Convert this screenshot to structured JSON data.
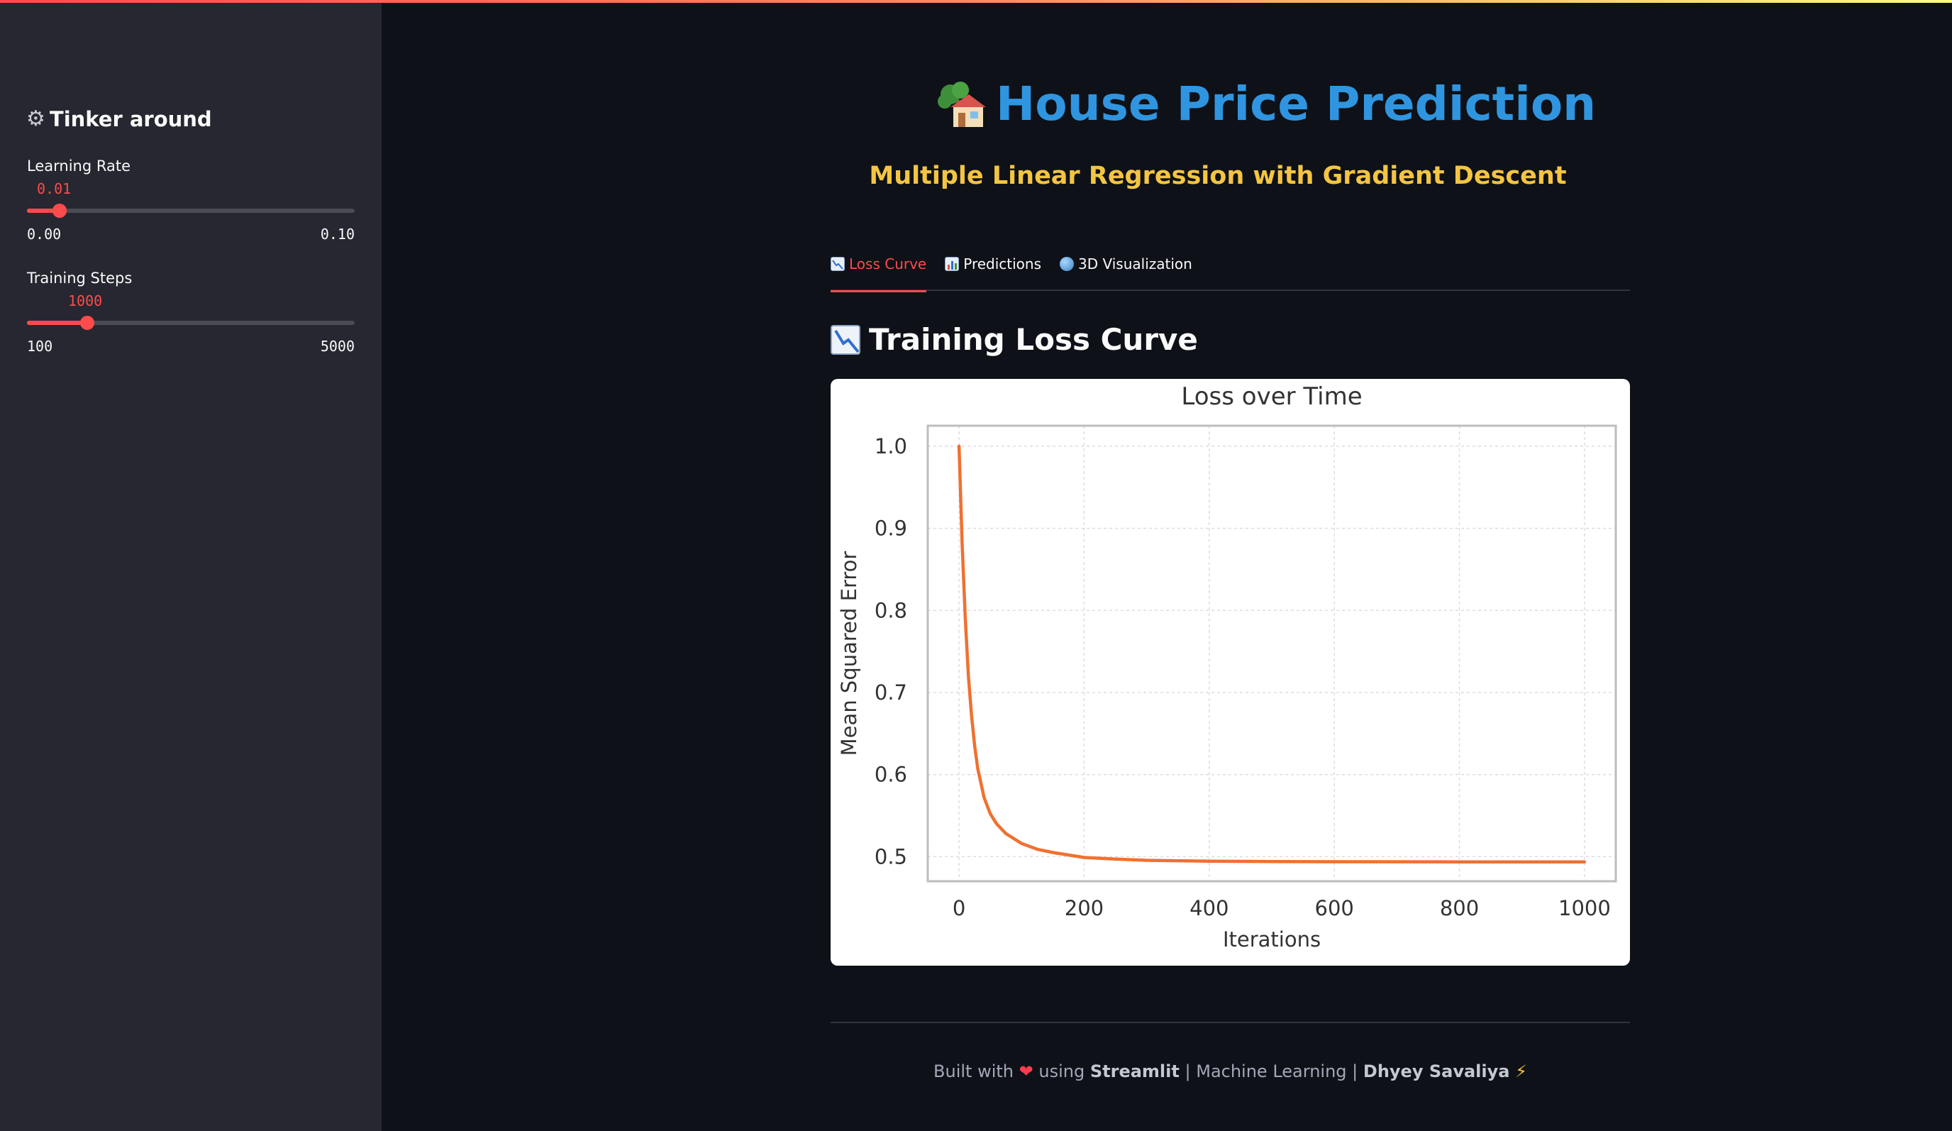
{
  "sidebar": {
    "header": "Tinker around",
    "learning_rate": {
      "label": "Learning Rate",
      "value": "0.01",
      "min": "0.00",
      "max": "0.10",
      "fraction": 0.1
    },
    "training_steps": {
      "label": "Training Steps",
      "value": "1000",
      "min": "100",
      "max": "5000",
      "fraction": 0.184
    }
  },
  "main": {
    "title": "House Price Prediction",
    "subtitle": "Multiple Linear Regression with Gradient Descent",
    "tabs": [
      {
        "label": "Loss Curve",
        "icon": "chart-decreasing-icon",
        "active": true
      },
      {
        "label": "Predictions",
        "icon": "bar-chart-icon",
        "active": false
      },
      {
        "label": "3D Visualization",
        "icon": "globe-icon",
        "active": false
      }
    ],
    "section_title": "Training Loss Curve"
  },
  "chart_data": {
    "type": "line",
    "title": "Loss over Time",
    "xlabel": "Iterations",
    "ylabel": "Mean Squared Error",
    "xlim": [
      -50,
      1050
    ],
    "ylim": [
      0.47,
      1.025
    ],
    "xticks": [
      0,
      200,
      400,
      600,
      800,
      1000
    ],
    "yticks": [
      0.5,
      0.6,
      0.7,
      0.8,
      0.9,
      1.0
    ],
    "ytick_labels": [
      "0.5",
      "0.6",
      "0.7",
      "0.8",
      "0.9",
      "1.0"
    ],
    "grid": true,
    "series": [
      {
        "color": "#f07030",
        "x": [
          0,
          5,
          10,
          15,
          20,
          25,
          30,
          40,
          50,
          60,
          75,
          100,
          125,
          150,
          200,
          250,
          300,
          400,
          500,
          600,
          800,
          1000
        ],
        "y": [
          1.0,
          0.88,
          0.79,
          0.72,
          0.672,
          0.635,
          0.607,
          0.572,
          0.552,
          0.54,
          0.528,
          0.516,
          0.509,
          0.505,
          0.499,
          0.497,
          0.4955,
          0.4945,
          0.494,
          0.4938,
          0.4936,
          0.4935
        ]
      }
    ]
  },
  "footer": {
    "built_with": "Built with",
    "using": "using",
    "framework": "Streamlit",
    "separator1": "|",
    "topic": "Machine Learning",
    "separator2": "|",
    "author": "Dhyey Savaliya"
  },
  "colors": {
    "accent": "#ff4b4b",
    "title": "#2f95e0",
    "subtitle": "#f4c542",
    "line": "#f07030"
  }
}
